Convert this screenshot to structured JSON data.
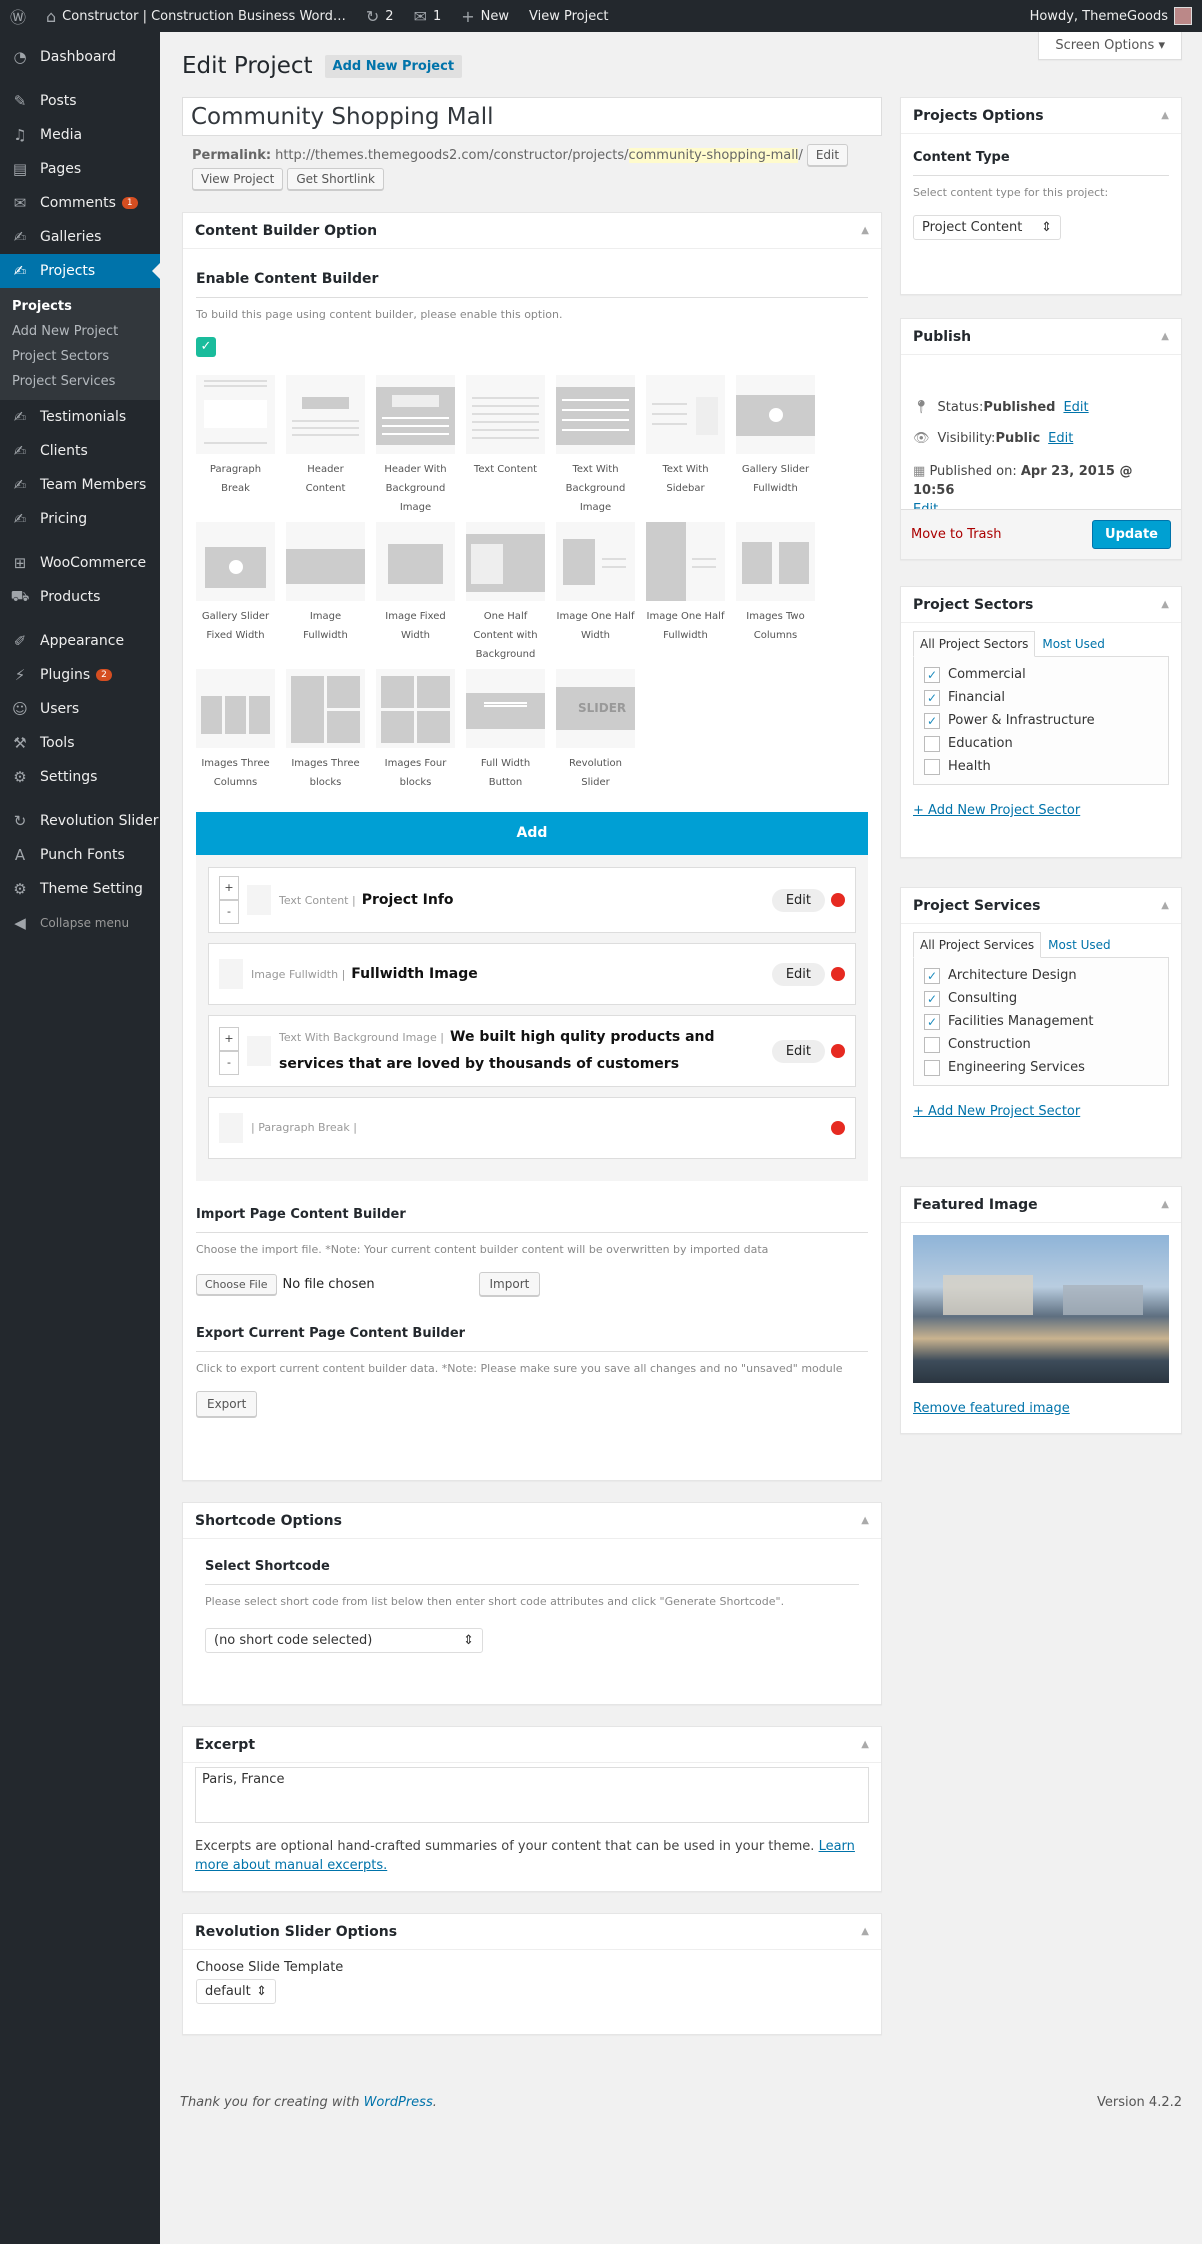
{
  "adminbar": {
    "site": "Constructor | Construction Business Word…",
    "updates": "2",
    "comments": "1",
    "new": "New",
    "view": "View Project",
    "howdy": "Howdy, ThemeGoods"
  },
  "sidebar": {
    "items": [
      {
        "label": "Dashboard",
        "icon": "dashboard-icon",
        "glyph": "◔"
      },
      {
        "sep": true
      },
      {
        "label": "Posts",
        "icon": "pin-icon",
        "glyph": "✎"
      },
      {
        "label": "Media",
        "icon": "media-icon",
        "glyph": "♫"
      },
      {
        "label": "Pages",
        "icon": "pages-icon",
        "glyph": "▤"
      },
      {
        "label": "Comments",
        "icon": "comment-icon",
        "glyph": "✉",
        "badge": "1"
      },
      {
        "label": "Galleries",
        "icon": "edit-icon",
        "glyph": "✍"
      },
      {
        "label": "Projects",
        "icon": "edit-icon",
        "glyph": "✍",
        "active": true
      },
      {
        "sub": [
          "Projects",
          "Add New Project",
          "Project Sectors",
          "Project Services"
        ]
      },
      {
        "label": "Testimonials",
        "icon": "edit-icon",
        "glyph": "✍"
      },
      {
        "label": "Clients",
        "icon": "edit-icon",
        "glyph": "✍"
      },
      {
        "label": "Team Members",
        "icon": "edit-icon",
        "glyph": "✍"
      },
      {
        "label": "Pricing",
        "icon": "edit-icon",
        "glyph": "✍"
      },
      {
        "sep": true
      },
      {
        "label": "WooCommerce",
        "icon": "woocommerce-icon",
        "glyph": "⊞"
      },
      {
        "label": "Products",
        "icon": "cart-icon",
        "glyph": "⛟"
      },
      {
        "sep": true
      },
      {
        "label": "Appearance",
        "icon": "brush-icon",
        "glyph": "✐"
      },
      {
        "label": "Plugins",
        "icon": "plug-icon",
        "glyph": "⚡",
        "badge": "2"
      },
      {
        "label": "Users",
        "icon": "user-icon",
        "glyph": "☺"
      },
      {
        "label": "Tools",
        "icon": "wrench-icon",
        "glyph": "⚒"
      },
      {
        "label": "Settings",
        "icon": "settings-icon",
        "glyph": "⚙"
      },
      {
        "sep": true
      },
      {
        "label": "Revolution Slider",
        "icon": "refresh-icon",
        "glyph": "↻"
      },
      {
        "label": "Punch Fonts",
        "icon": "font-icon",
        "glyph": "A"
      },
      {
        "label": "Theme Setting",
        "icon": "gear-icon",
        "glyph": "⚙"
      },
      {
        "label": "Collapse menu",
        "icon": "collapse-icon",
        "glyph": "◀",
        "small": true
      }
    ]
  },
  "screen_options": "Screen Options",
  "header": {
    "title": "Edit Project",
    "add_new": "Add New Project"
  },
  "post": {
    "title": "Community Shopping Mall",
    "permalink_label": "Permalink:",
    "permalink_base": "http://themes.themegoods2.com/constructor/projects/",
    "permalink_slug": "community-shopping-mall",
    "permalink_tail": "/",
    "edit": "Edit",
    "view": "View Project",
    "shortlink": "Get Shortlink"
  },
  "builder": {
    "title": "Content Builder Option",
    "enable_title": "Enable Content Builder",
    "enable_desc": "To build this page using content builder, please enable this option.",
    "enabled": true,
    "modules": [
      "Paragraph Break",
      "Header Content",
      "Header With Background Image",
      "Text Content",
      "Text With Background Image",
      "Text With Sidebar",
      "Gallery Slider Fullwidth",
      "Gallery Slider Fixed Width",
      "Image Fullwidth",
      "Image Fixed Width",
      "One Half Content with Background",
      "Image One Half Width",
      "Image One Half Fullwidth",
      "Images Two Columns",
      "Images Three Columns",
      "Images Three blocks",
      "Images Four blocks",
      "Full Width Button",
      "Revolution Slider"
    ],
    "slider_text": "SLIDER",
    "add": "Add",
    "items": [
      {
        "type": "Text Content |",
        "title": "Project Info",
        "edit": "Edit",
        "pm": true
      },
      {
        "type": "Image Fullwidth |",
        "title": "Fullwidth Image",
        "edit": "Edit",
        "pm": false
      },
      {
        "type": "Text With Background Image |",
        "title": "We built high qulity products and services that are loved by thousands of customers",
        "edit": "Edit",
        "pm": true
      },
      {
        "type": "| Paragraph Break |",
        "title": "",
        "pm": false
      }
    ],
    "import_title": "Import Page Content Builder",
    "import_desc": "Choose the import file. *Note: Your current content builder content will be overwritten by imported data",
    "choose": "Choose File",
    "nofile": "No file chosen",
    "import": "Import",
    "export_title": "Export Current Page Content Builder",
    "export_desc": "Click to export current content builder data. *Note: Please make sure you save all changes and no \"unsaved\" module",
    "export": "Export"
  },
  "shortcode": {
    "title": "Shortcode Options",
    "sub": "Select Shortcode",
    "desc": "Please select short code from list below then enter short code attributes and click \"Generate Shortcode\".",
    "selected": "(no short code selected)"
  },
  "excerpt": {
    "title": "Excerpt",
    "value": "Paris, France",
    "desc": "Excerpts are optional hand-crafted summaries of your content that can be used in your theme. ",
    "link": "Learn more about manual excerpts."
  },
  "revslider": {
    "title": "Revolution Slider Options",
    "label": "Choose Slide Template",
    "selected": "default"
  },
  "footer": {
    "thanks": "Thank you for creating with ",
    "wp": "WordPress",
    "dot": ".",
    "version": "Version 4.2.2"
  },
  "project_options": {
    "title": "Projects Options",
    "sub": "Content Type",
    "desc": "Select content type for this project:",
    "selected": "Project Content"
  },
  "publish": {
    "title": "Publish",
    "status_label": "Status: ",
    "status": "Published",
    "visibility_label": "Visibility: ",
    "visibility": "Public",
    "published_label": "Published on: ",
    "published": "Apr 23, 2015 @ 10:56",
    "edit": "Edit",
    "trash": "Move to Trash",
    "update": "Update"
  },
  "sectors": {
    "title": "Project Sectors",
    "tab_all": "All Project Sectors",
    "tab_used": "Most Used",
    "items": [
      {
        "label": "Commercial",
        "checked": true
      },
      {
        "label": "Financial",
        "checked": true
      },
      {
        "label": "Power & Infrastructure",
        "checked": true
      },
      {
        "label": "Education",
        "checked": false
      },
      {
        "label": "Health",
        "checked": false
      }
    ],
    "add": "+ Add New Project Sector"
  },
  "services": {
    "title": "Project Services",
    "tab_all": "All Project Services",
    "tab_used": "Most Used",
    "items": [
      {
        "label": "Architecture Design",
        "checked": true
      },
      {
        "label": "Consulting",
        "checked": true
      },
      {
        "label": "Facilities Management",
        "checked": true
      },
      {
        "label": "Construction",
        "checked": false
      },
      {
        "label": "Engineering Services",
        "checked": false
      }
    ],
    "add": "+ Add New Project Sector"
  },
  "featured": {
    "title": "Featured Image",
    "remove": "Remove featured image"
  },
  "colors": {
    "accent": "#0073aa",
    "add_bar": "#009fd4",
    "delete_dot": "#e62a21",
    "check": "#1abc9c",
    "update": "#00a0d2"
  }
}
